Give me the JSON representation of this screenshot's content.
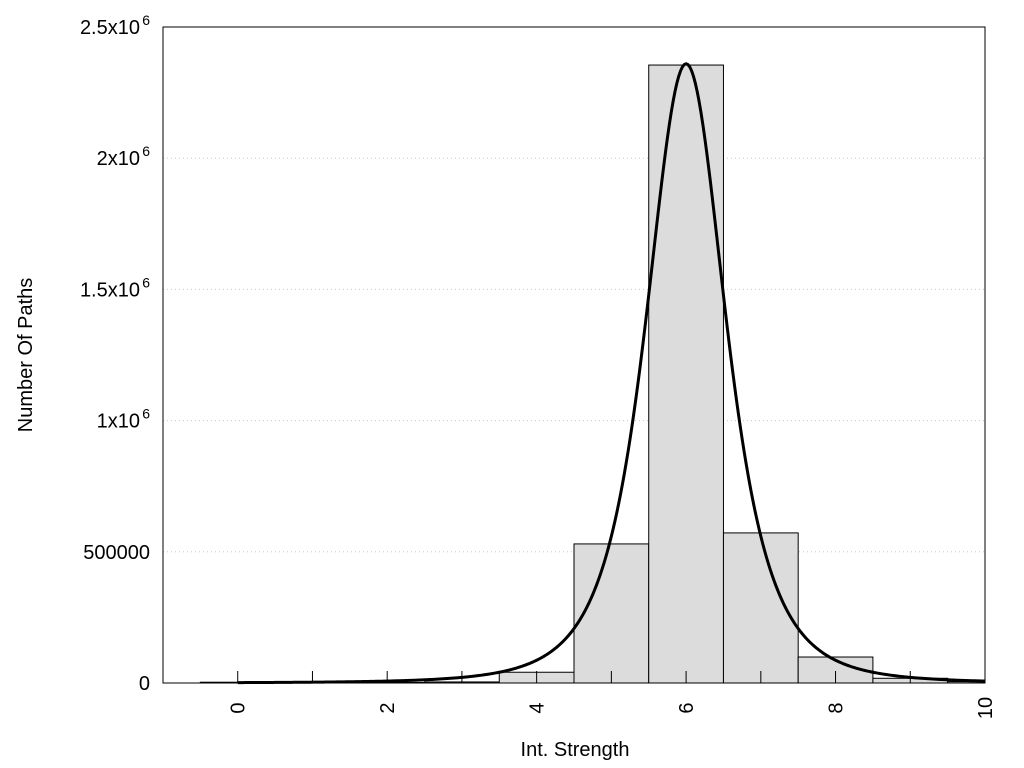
{
  "chart_data": {
    "type": "bar",
    "title": "",
    "xlabel": "Int. Strength",
    "ylabel": "Number Of Paths",
    "xlim": [
      -1,
      10
    ],
    "ylim": [
      0,
      2500000
    ],
    "grid": "horizontal dotted",
    "x_ticks": [
      "0",
      "2",
      "4",
      "6",
      "8",
      "10"
    ],
    "x_tick_values": [
      0,
      2,
      4,
      6,
      8,
      10
    ],
    "y_ticks": [
      {
        "value": 0,
        "label": "0",
        "exp": ""
      },
      {
        "value": 500000,
        "label": "500000",
        "exp": ""
      },
      {
        "value": 1000000,
        "label": "1x10",
        "exp": "6"
      },
      {
        "value": 1500000,
        "label": "1.5x10",
        "exp": "6"
      },
      {
        "value": 2000000,
        "label": "2x10",
        "exp": "6"
      },
      {
        "value": 2500000,
        "label": "2.5x10",
        "exp": "6"
      }
    ],
    "bar_width": 1,
    "categories": [
      0,
      1,
      2,
      3,
      4,
      5,
      6,
      7,
      8,
      9,
      10
    ],
    "values": [
      3000,
      2000,
      2000,
      4000,
      41000,
      530000,
      2355000,
      572000,
      99000,
      18000,
      5000
    ],
    "colors": {
      "bar_fill": "#dcdcdc",
      "bar_stroke": "#000000",
      "curve": "#000000",
      "grid": "#c8c8c8"
    },
    "fit_curve": {
      "model": "A / (1 + ((x - c)/w)^2)^p",
      "amplitude": 2360000,
      "center": 6,
      "width": 0.974,
      "power": 2,
      "x_range": [
        0,
        10
      ]
    }
  }
}
